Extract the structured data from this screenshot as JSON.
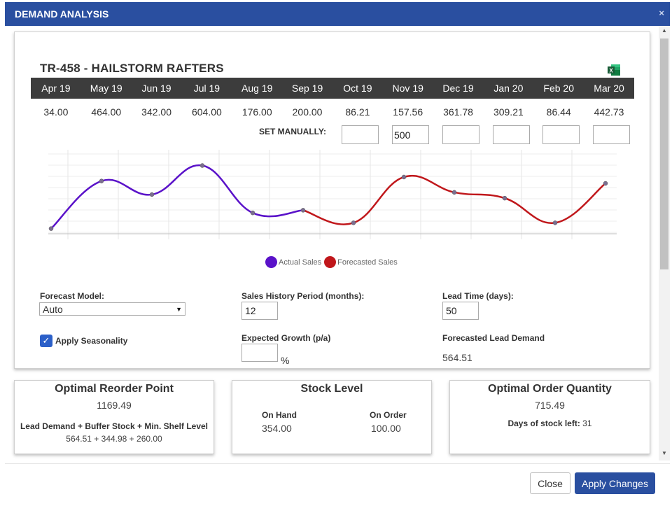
{
  "dialog": {
    "title": "DEMAND ANALYSIS",
    "close_glyph": "×"
  },
  "product": {
    "title": "TR-458 - HAILSTORM RAFTERS",
    "export_icon": "excel-icon"
  },
  "months": [
    "Apr 19",
    "May 19",
    "Jun 19",
    "Jul 19",
    "Aug 19",
    "Sep 19",
    "Oct 19",
    "Nov 19",
    "Dec 19",
    "Jan 20",
    "Feb 20",
    "Mar 20"
  ],
  "values": [
    "34.00",
    "464.00",
    "342.00",
    "604.00",
    "176.00",
    "200.00",
    "86.21",
    "157.56",
    "361.78",
    "309.21",
    "86.44",
    "442.73"
  ],
  "set_manually": {
    "label": "SET MANUALLY:",
    "inputs": [
      "",
      "500",
      "",
      "",
      "",
      ""
    ]
  },
  "chart_data": {
    "type": "line",
    "categories": [
      "Apr 19",
      "May 19",
      "Jun 19",
      "Jul 19",
      "Aug 19",
      "Sep 19",
      "Oct 19",
      "Nov 19",
      "Dec 19",
      "Jan 20",
      "Feb 20",
      "Mar 20"
    ],
    "series": [
      {
        "name": "Actual Sales",
        "color": "#5a12c9",
        "values": [
          34.0,
          464.0,
          342.0,
          604.0,
          176.0,
          200.0,
          null,
          null,
          null,
          null,
          null,
          null
        ]
      },
      {
        "name": "Forecasted Sales",
        "color": "#c0171b",
        "values": [
          null,
          null,
          null,
          null,
          null,
          200.0,
          86.21,
          500.0,
          361.78,
          309.21,
          86.44,
          442.73
        ]
      }
    ],
    "grid": true,
    "legend": "bottom-center"
  },
  "legend": {
    "actual": "Actual Sales",
    "forecast": "Forecasted Sales"
  },
  "form": {
    "forecast_model_label": "Forecast Model:",
    "forecast_model_value": "Auto",
    "history_label": "Sales History Period (months):",
    "history_value": "12",
    "lead_time_label": "Lead Time (days):",
    "lead_time_value": "50",
    "seasonality_label": "Apply Seasonality",
    "seasonality_checked": true,
    "growth_label": "Expected Growth (p/a)",
    "growth_value": "",
    "growth_unit": "%",
    "forecast_lead_label": "Forecasted Lead Demand",
    "forecast_lead_value": "564.51"
  },
  "reorder": {
    "title": "Optimal Reorder Point",
    "value": "1169.49",
    "formula_label": "Lead Demand + Buffer Stock + Min. Shelf Level",
    "formula_value": "564.51 + 344.98 + 260.00"
  },
  "stock": {
    "title": "Stock Level",
    "on_hand_label": "On Hand",
    "on_hand_value": "354.00",
    "on_order_label": "On Order",
    "on_order_value": "100.00"
  },
  "order_qty": {
    "title": "Optimal Order Quantity",
    "value": "715.49",
    "days_label": "Days of stock left:",
    "days_value": "31"
  },
  "buttons": {
    "close": "Close",
    "apply": "Apply Changes"
  }
}
